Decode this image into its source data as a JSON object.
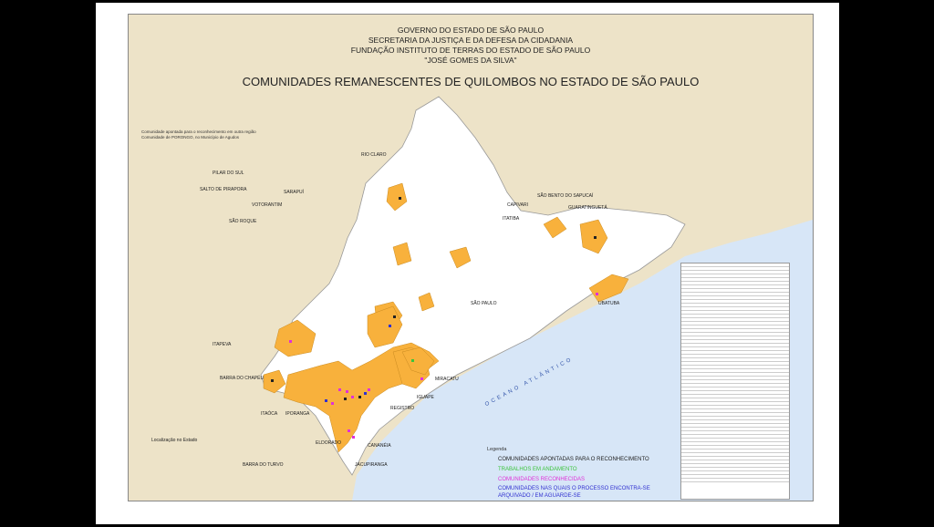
{
  "header": {
    "lines": [
      "GOVERNO DO ESTADO DE SÃO PAULO",
      "SECRETARIA DA JUSTIÇA E DA DEFESA DA CIDADANIA",
      "FUNDAÇÃO INSTITUTO DE TERRAS DO ESTADO DE SÃO PAULO",
      "\"JOSÉ GOMES DA SILVA\""
    ],
    "title": "COMUNIDADES REMANESCENTES DE QUILOMBOS NO ESTADO DE SÃO PAULO"
  },
  "note": [
    "Comunidade apontada para o reconhecimento em outra região",
    "Comunidade de PORONGO, no Município de Agudos"
  ],
  "labels": {
    "pilar": "PILAR DO SUL",
    "salto": "SALTO DE PIRAPORA",
    "votorantim": "VOTORANTIM",
    "sarapui": "SARAPUÍ",
    "sao_roque": "SÃO ROQUE",
    "rio_claro": "RIO CLARO",
    "capivari": "CAPIVARI",
    "itatiba": "ITATIBA",
    "sao_bento": "SÃO BENTO DO SAPUCAÍ",
    "guaratingueta": "GUARATINGUETÁ",
    "ubatuba": "UBATUBA",
    "itapeva": "ITAPEVA",
    "barra_chapeu": "BARRA DO CHAPÉU",
    "itaoca": "ITAÓCA",
    "iporanga": "IPORANGA",
    "eldorado": "ELDORADO",
    "barra_turvo": "BARRA DO TURVO",
    "cananeia": "CANANÉIA",
    "jacupiranga": "JACUPIRANGA",
    "registro": "REGISTRO",
    "iguape": "IGUAPE",
    "miracatu": "MIRACATU",
    "sao_paulo": "SÃO PAULO",
    "localizacao": "Localização no Estado"
  },
  "legend": {
    "title": "Legenda",
    "items": [
      {
        "label": "COMUNIDADES APONTADAS PARA O RECONHECIMENTO",
        "color": "#222222"
      },
      {
        "label": "TRABALHOS EM ANDAMENTO",
        "color": "#3bc43b"
      },
      {
        "label": "COMUNIDADES RECONHECIDAS",
        "color": "#e030d8"
      },
      {
        "label": "COMUNIDADES NAS QUAIS O PROCESSO ENCONTRA-SE",
        "color": "#3030d0"
      },
      {
        "label": "ARQUIVADO / EM AGUARDE-SE",
        "color": "#3030d0"
      }
    ]
  },
  "ocean": "OCEANO ATLÂNTICO",
  "colors": {
    "background": "#ede3c8",
    "state": "#ffffff",
    "highlight": "#f8b13c",
    "sea": "#d7e6f7"
  }
}
